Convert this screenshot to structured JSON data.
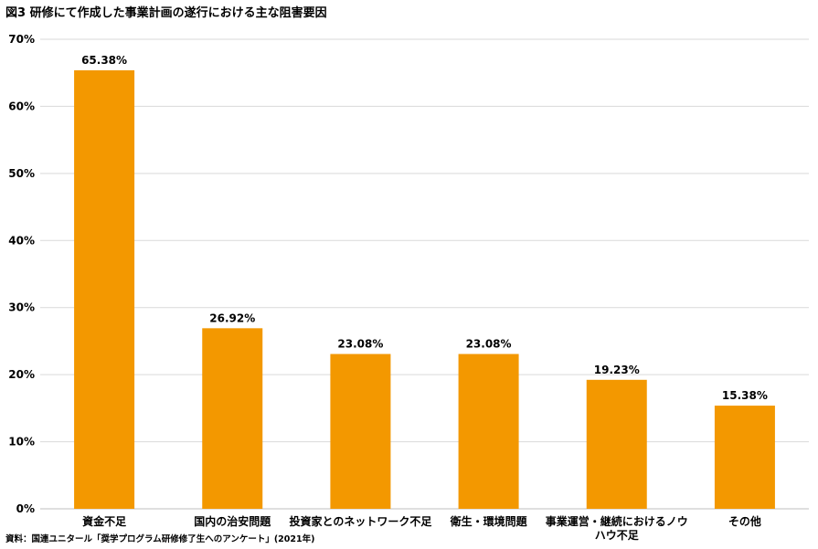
{
  "chart_data": {
    "type": "bar",
    "title": "図3 研修にて作成した事業計画の遂行における主な阻害要因",
    "categories": [
      [
        "資金不足"
      ],
      [
        "国内の治安問題"
      ],
      [
        "投資家とのネットワーク不足"
      ],
      [
        "衛生・環境問題"
      ],
      [
        "事業運営・継続におけるノウ",
        "ハウ不足"
      ],
      [
        "その他"
      ]
    ],
    "values": [
      65.38,
      26.92,
      23.08,
      23.08,
      19.23,
      15.38
    ],
    "value_labels": [
      "65.38%",
      "26.92%",
      "23.08%",
      "23.08%",
      "19.23%",
      "15.38%"
    ],
    "ylim": [
      0,
      70
    ],
    "yticks": [
      "0%",
      "10%",
      "20%",
      "30%",
      "40%",
      "50%",
      "60%",
      "70%"
    ],
    "xlabel": "",
    "ylabel": "",
    "grid": true,
    "bar_color": "#F39800",
    "grid_color": "#D9D9D9"
  },
  "source": "資料：国連ユニタール「奨学プログラム研修修了生へのアンケート」(2021年)"
}
